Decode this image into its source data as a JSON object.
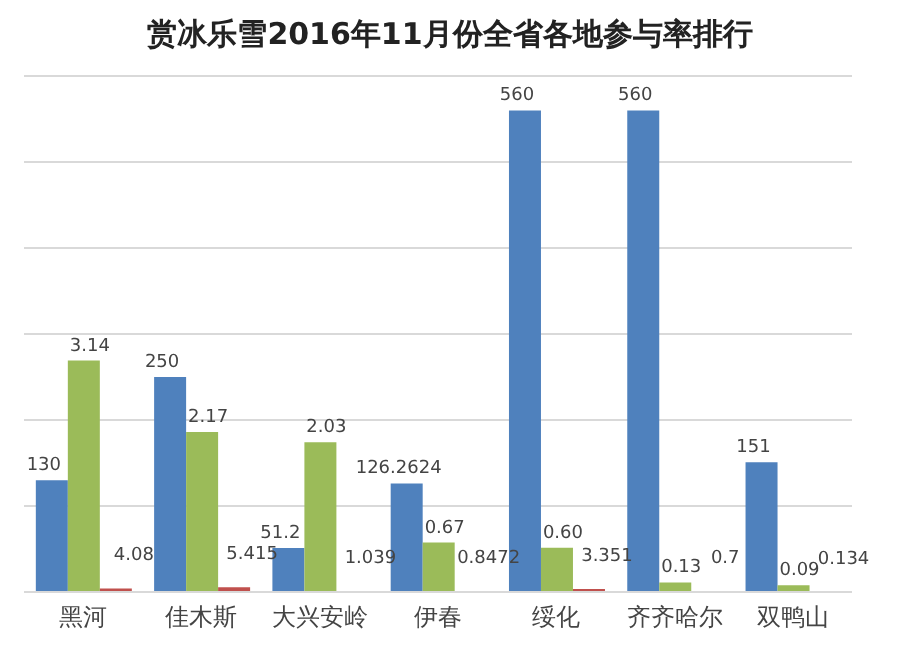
{
  "chart_data": {
    "type": "bar",
    "title": "赏冰乐雪2016年11月份全省各地参与率排行",
    "categories": [
      "黑河",
      "佳木斯",
      "大兴安岭",
      "伊春",
      "绥化",
      "齐齐哈尔",
      "双鸭山"
    ],
    "series": [
      {
        "color": "#4f81bd",
        "values": [
          130,
          250,
          51.2,
          126.2624,
          560,
          560,
          151
        ]
      },
      {
        "color": "#9bbb59",
        "axis": "y2",
        "values": [
          3.14,
          2.17,
          2.03,
          0.67,
          0.6,
          0.13,
          0.09
        ],
        "value_labels": [
          "3.14",
          "2.17",
          "2.03",
          "0.67",
          "0.60",
          "0.13",
          "0.09"
        ]
      },
      {
        "color": "#c0504d",
        "values": [
          4.08,
          5.415,
          1.039,
          0.8472,
          3.351,
          0.7,
          0.134
        ]
      }
    ],
    "ylim": [
      0,
      600
    ],
    "y2lim": [
      0,
      7
    ],
    "tick_labels": "x",
    "grid": "y",
    "legend": false,
    "data_labels": true
  }
}
